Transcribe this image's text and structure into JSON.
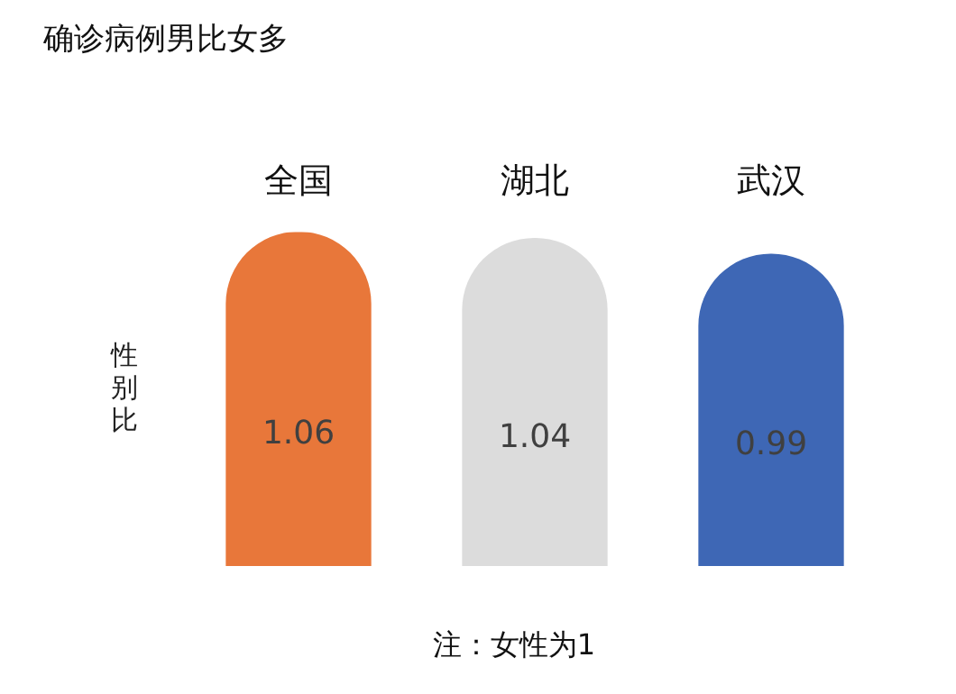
{
  "chart_data": {
    "type": "bar",
    "title": "确诊病例男比女多",
    "ylabel": "性别比",
    "categories": [
      "全国",
      "湖北",
      "武汉"
    ],
    "values": [
      1.06,
      1.04,
      0.99
    ],
    "colors": [
      "#e8773a",
      "#dcdcdc",
      "#3e67b5"
    ],
    "data_labels": true,
    "annotations": [
      "注：女性为1"
    ]
  }
}
